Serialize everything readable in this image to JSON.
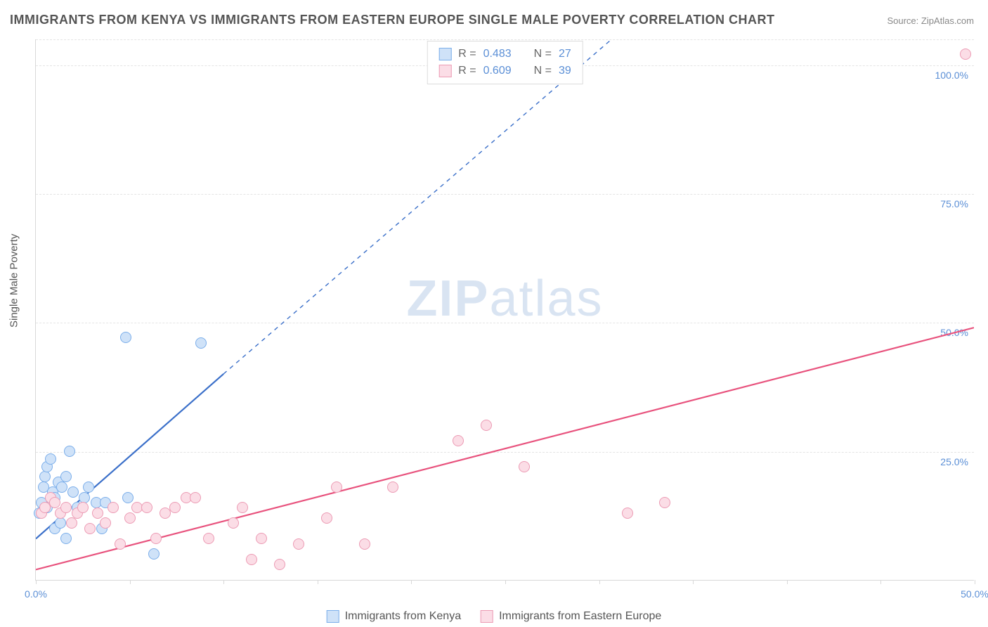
{
  "title": "IMMIGRANTS FROM KENYA VS IMMIGRANTS FROM EASTERN EUROPE SINGLE MALE POVERTY CORRELATION CHART",
  "source_prefix": "Source: ",
  "source_name": "ZipAtlas.com",
  "y_axis_label": "Single Male Poverty",
  "watermark_bold": "ZIP",
  "watermark_light": "atlas",
  "chart": {
    "type": "scatter",
    "xlim": [
      0,
      50
    ],
    "ylim": [
      0,
      105
    ],
    "x_ticks": [
      0,
      5,
      10,
      15,
      20,
      25,
      30,
      35,
      40,
      45,
      50
    ],
    "x_tick_labels": {
      "0": "0.0%",
      "50": "50.0%"
    },
    "y_gridlines": [
      25,
      50,
      75,
      100
    ],
    "y_tick_labels": {
      "25": "25.0%",
      "50": "50.0%",
      "75": "75.0%",
      "100": "100.0%"
    },
    "background_color": "#ffffff",
    "grid_color": "#e4e4e4",
    "axis_color": "#d8d8d8",
    "tick_label_color": "#5b8fd6",
    "series": [
      {
        "name": "Immigrants from Kenya",
        "key": "kenya",
        "color_fill": "#cfe2f8",
        "color_stroke": "#7baeea",
        "marker_radius": 8,
        "R": "0.483",
        "N": "27",
        "trend": {
          "x1": 0,
          "y1": 8,
          "x2_solid": 10,
          "y2_solid": 40,
          "x2_dash": 38,
          "y2_dash": 128,
          "color": "#3a6fc9",
          "width": 2.2
        },
        "points": [
          [
            0.2,
            13
          ],
          [
            0.3,
            15
          ],
          [
            0.4,
            18
          ],
          [
            0.5,
            20
          ],
          [
            0.6,
            22
          ],
          [
            0.8,
            23.5
          ],
          [
            0.6,
            14
          ],
          [
            0.9,
            17
          ],
          [
            1.0,
            16
          ],
          [
            1.2,
            19
          ],
          [
            1.4,
            18
          ],
          [
            1.6,
            20
          ],
          [
            1.0,
            10
          ],
          [
            1.3,
            11
          ],
          [
            1.6,
            8
          ],
          [
            2.0,
            17
          ],
          [
            2.2,
            14
          ],
          [
            2.6,
            16
          ],
          [
            3.2,
            15
          ],
          [
            3.7,
            15
          ],
          [
            4.9,
            16
          ],
          [
            6.3,
            5
          ],
          [
            4.8,
            47
          ],
          [
            8.8,
            46
          ],
          [
            1.8,
            25
          ],
          [
            3.5,
            10
          ],
          [
            2.8,
            18
          ]
        ]
      },
      {
        "name": "Immigrants from Eastern Europe",
        "key": "eastern_europe",
        "color_fill": "#fbdde6",
        "color_stroke": "#ec9bb4",
        "marker_radius": 8,
        "R": "0.609",
        "N": "39",
        "trend": {
          "x1": 0,
          "y1": 2,
          "x2_solid": 50,
          "y2_solid": 49,
          "color": "#e8527d",
          "width": 2.2
        },
        "points": [
          [
            0.3,
            13
          ],
          [
            0.5,
            14
          ],
          [
            0.8,
            16
          ],
          [
            1.0,
            15
          ],
          [
            1.3,
            13
          ],
          [
            1.6,
            14
          ],
          [
            1.9,
            11
          ],
          [
            2.2,
            13
          ],
          [
            2.5,
            14
          ],
          [
            2.9,
            10
          ],
          [
            3.3,
            13
          ],
          [
            3.7,
            11
          ],
          [
            4.1,
            14
          ],
          [
            4.5,
            7
          ],
          [
            5.0,
            12
          ],
          [
            5.4,
            14
          ],
          [
            5.9,
            14
          ],
          [
            6.4,
            8
          ],
          [
            6.9,
            13
          ],
          [
            7.4,
            14
          ],
          [
            8.0,
            16
          ],
          [
            8.5,
            16
          ],
          [
            9.2,
            8
          ],
          [
            10.5,
            11
          ],
          [
            11.0,
            14
          ],
          [
            11.5,
            4
          ],
          [
            12.0,
            8
          ],
          [
            13.0,
            3
          ],
          [
            14.0,
            7
          ],
          [
            15.5,
            12
          ],
          [
            16.0,
            18
          ],
          [
            17.5,
            7
          ],
          [
            19.0,
            18
          ],
          [
            22.5,
            27
          ],
          [
            24.0,
            30
          ],
          [
            26.0,
            22
          ],
          [
            31.5,
            13
          ],
          [
            33.5,
            15
          ],
          [
            49.5,
            102
          ]
        ]
      }
    ]
  },
  "stats_legend": {
    "R_label": "R =",
    "N_label": "N ="
  }
}
